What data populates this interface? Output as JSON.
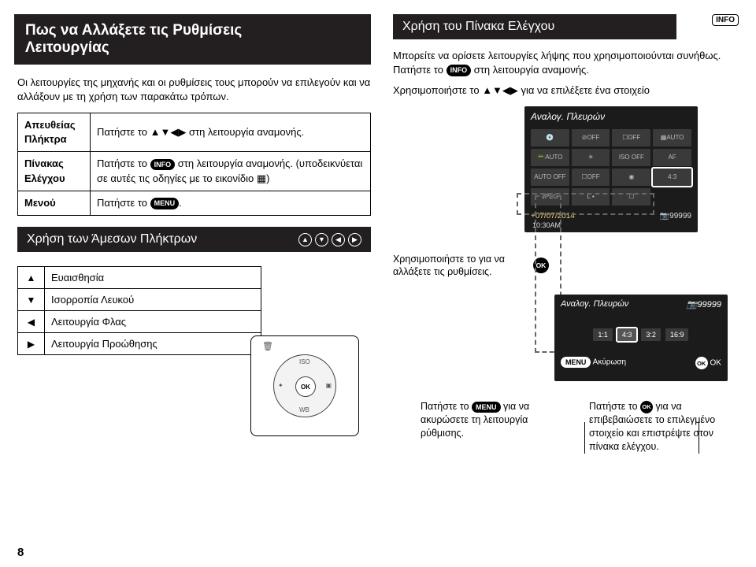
{
  "left": {
    "title_l1": "Πως να Αλλάξετε τις Ρυθμίσεις",
    "title_l2": "Λειτουργίας",
    "intro": "Οι λειτουργίες της μηχανής και οι ρυθμίσεις τους μπορούν να επιλεγούν και να αλλάξουν με τη χρήση των παρακάτω τρόπων.",
    "table1": [
      {
        "k": "Απευθείας Πλήκτρα",
        "v_pre": "Πατήστε το ",
        "v_post": " στη λειτουργία αναμονής.",
        "arrows": "▲▼◀▶"
      },
      {
        "k": "Πίνακας Ελέγχου",
        "v_pre": "Πατήστε το ",
        "info": "INFO",
        "v_mid": " στη λειτουργία αναμονής. (υποδεικνύεται σε αυτές τις οδηγίες με το εικονίδιο ",
        "grid_icon": "▦",
        "v_post": ")"
      },
      {
        "k": "Μενού",
        "v_pre": "Πατήστε το ",
        "menu": "MENU",
        "v_post": "."
      }
    ],
    "direct_keys_title": "Χρήση των Άμεσων Πλήκτρων",
    "table2": [
      {
        "a": "▲",
        "t": "Ευαισθησία"
      },
      {
        "a": "▼",
        "t": "Ισορροπία Λευκού"
      },
      {
        "a": "◀",
        "t": "Λειτουργία Φλας"
      },
      {
        "a": "▶",
        "t": "Λειτουργία Προώθησης"
      }
    ],
    "dpad": {
      "ok": "OK",
      "up": "ISO",
      "down": "WB",
      "left": "✦",
      "right": "▣"
    }
  },
  "right": {
    "title": "Χρήση του Πίνακα Ελέγχου",
    "info_badge": "INFO",
    "p1a": "Μπορείτε να ορίσετε λειτουργίες λήψης που χρησιμοποιούνται συνήθως. Πατήστε το ",
    "p1b": " στη λειτουργία αναμονής.",
    "p2a": "Χρησιμοποιήστε το ",
    "p2b": " για να επιλέξετε ένα στοιχείο",
    "arrows": "▲▼◀▶",
    "lcd1": {
      "hdr": "Αναλογ. Πλευρών",
      "cells": [
        "💿",
        "⊘OFF",
        "☐OFF",
        "▦AUTO",
        "📟AUTO",
        "☀",
        "ISO OFF",
        "AF",
        "AUTO OFF",
        "☐OFF",
        "◉",
        "4:3",
        "JPEG",
        "L ▪",
        "☐"
      ],
      "date": "07/07/2014",
      "time": "10:30AM",
      "shots": "99999",
      "selected_index": 11
    },
    "hint_left": "Χρησιμοποιήστε το     για να αλλάξετε τις ρυθμίσεις.",
    "ok": "OK",
    "lcd2": {
      "hdr": "Αναλογ. Πλευρών",
      "shots": "99999",
      "options": [
        "1:1",
        "4:3",
        "3:2",
        "16:9"
      ],
      "sel_index": 1,
      "menu": "MENU",
      "cancel": "Ακύρωση",
      "ok_label": "OK"
    },
    "foot_left_a": "Πατήστε το ",
    "foot_left_b": " για να ακυρώσετε τη λειτουργία ρύθμισης.",
    "foot_right_a": "Πατήστε το ",
    "foot_right_b": " για να επιβεβαιώσετε το επιλεγμένο στοιχείο και επιστρέψτε στον πίνακα ελέγχου.",
    "menu_pill": "MENU"
  },
  "page": "8"
}
